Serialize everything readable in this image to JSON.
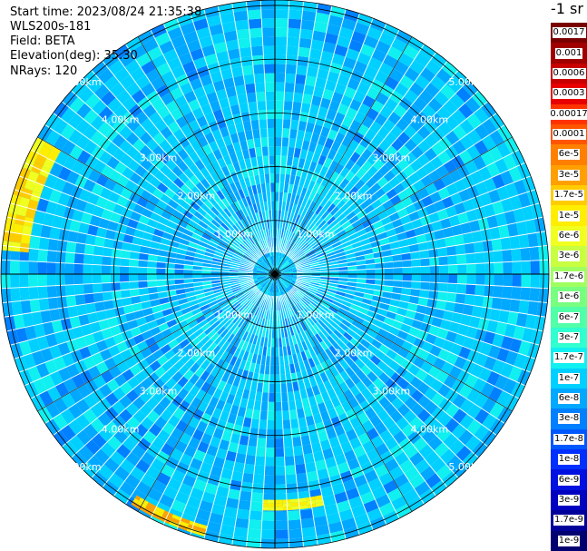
{
  "header": {
    "start_time": "Start time: 2023/08/24 21:35:38",
    "instrument": "WLS200s-181",
    "field": "Field: BETA",
    "elevation": "Elevation(deg): 35.30",
    "nrays": "NRays: 120"
  },
  "colorbar": {
    "unit": "-1 sr",
    "levels": [
      {
        "label": "0.0017",
        "color": "#7a0000"
      },
      {
        "label": "0.001",
        "color": "#a00000"
      },
      {
        "label": "0.0006",
        "color": "#c80000"
      },
      {
        "label": "0.0003",
        "color": "#e80000"
      },
      {
        "label": "0.00017",
        "color": "#ff3300"
      },
      {
        "label": "0.0001",
        "color": "#ff5500"
      },
      {
        "label": "6e-5",
        "color": "#ff8000"
      },
      {
        "label": "3e-5",
        "color": "#ffa000"
      },
      {
        "label": "1.7e-5",
        "color": "#ffcc00"
      },
      {
        "label": "1e-5",
        "color": "#ffee00"
      },
      {
        "label": "6e-6",
        "color": "#f0ff20"
      },
      {
        "label": "3e-6",
        "color": "#c8ff40"
      },
      {
        "label": "1.7e-6",
        "color": "#a0ff60"
      },
      {
        "label": "1e-6",
        "color": "#78ff80"
      },
      {
        "label": "6e-7",
        "color": "#50ffa8"
      },
      {
        "label": "3e-7",
        "color": "#30ffd0"
      },
      {
        "label": "1.7e-7",
        "color": "#10f0f0"
      },
      {
        "label": "1e-7",
        "color": "#00d0ff"
      },
      {
        "label": "6e-8",
        "color": "#00a8ff"
      },
      {
        "label": "3e-8",
        "color": "#0080ff"
      },
      {
        "label": "1.7e-8",
        "color": "#0058ff"
      },
      {
        "label": "1e-8",
        "color": "#0030ff"
      },
      {
        "label": "6e-9",
        "color": "#0010e0"
      },
      {
        "label": "3e-9",
        "color": "#0000c0"
      },
      {
        "label": "1.7e-9",
        "color": "#00009a"
      },
      {
        "label": "1e-9",
        "color": "#000070"
      }
    ]
  },
  "chart_data": {
    "type": "heatmap",
    "projection": "polar-ppi",
    "field": "BETA",
    "nrays": 120,
    "range_rings_km": [
      1,
      2,
      3,
      4,
      5
    ],
    "range_ring_labels": [
      "1.00km",
      "2.00km",
      "3.00km",
      "4.00km",
      "5.00km"
    ],
    "max_range_km": 5.1,
    "spoke_angles_deg": [
      0,
      30,
      60,
      90,
      120,
      150,
      180,
      210,
      240,
      270,
      300,
      330
    ],
    "background_levels": [
      "1e-7",
      "6e-8",
      "1.7e-7",
      "3e-8"
    ],
    "high_return_regions": [
      {
        "azimuth_start_deg": 275,
        "azimuth_end_deg": 300,
        "range_start_km": 4.6,
        "range_end_km": 5.1,
        "levels": [
          "1e-5",
          "6e-6",
          "1.7e-5"
        ]
      },
      {
        "azimuth_start_deg": 195,
        "azimuth_end_deg": 212,
        "range_start_km": 4.85,
        "range_end_km": 5.05,
        "levels": [
          "1e-5",
          "3e-5"
        ]
      },
      {
        "azimuth_start_deg": 168,
        "azimuth_end_deg": 183,
        "range_start_km": 4.2,
        "range_end_km": 4.4,
        "levels": [
          "1e-5",
          "6e-6"
        ]
      }
    ]
  }
}
